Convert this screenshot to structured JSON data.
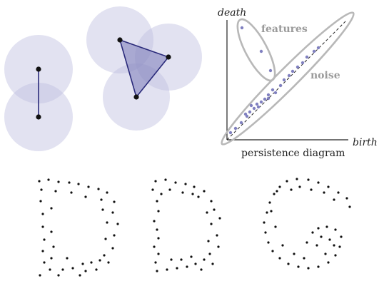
{
  "colors": {
    "disk_fill": "#bfbfe0",
    "simplex_line": "#2a2a7a",
    "vertex": "#111111",
    "triangle_fill": "#7a7ab8",
    "pd_point": "#8080c0",
    "pd_outline": "#b8b8b8",
    "label_gray": "#9a9a9a",
    "axis": "#222222"
  },
  "persistence": {
    "title": "persistence diagram",
    "x_axis_label": "birth",
    "y_axis_label": "death",
    "features_label": "features",
    "noise_label": "noise"
  },
  "icons": [
    "vertex-dot",
    "disk-shape"
  ]
}
